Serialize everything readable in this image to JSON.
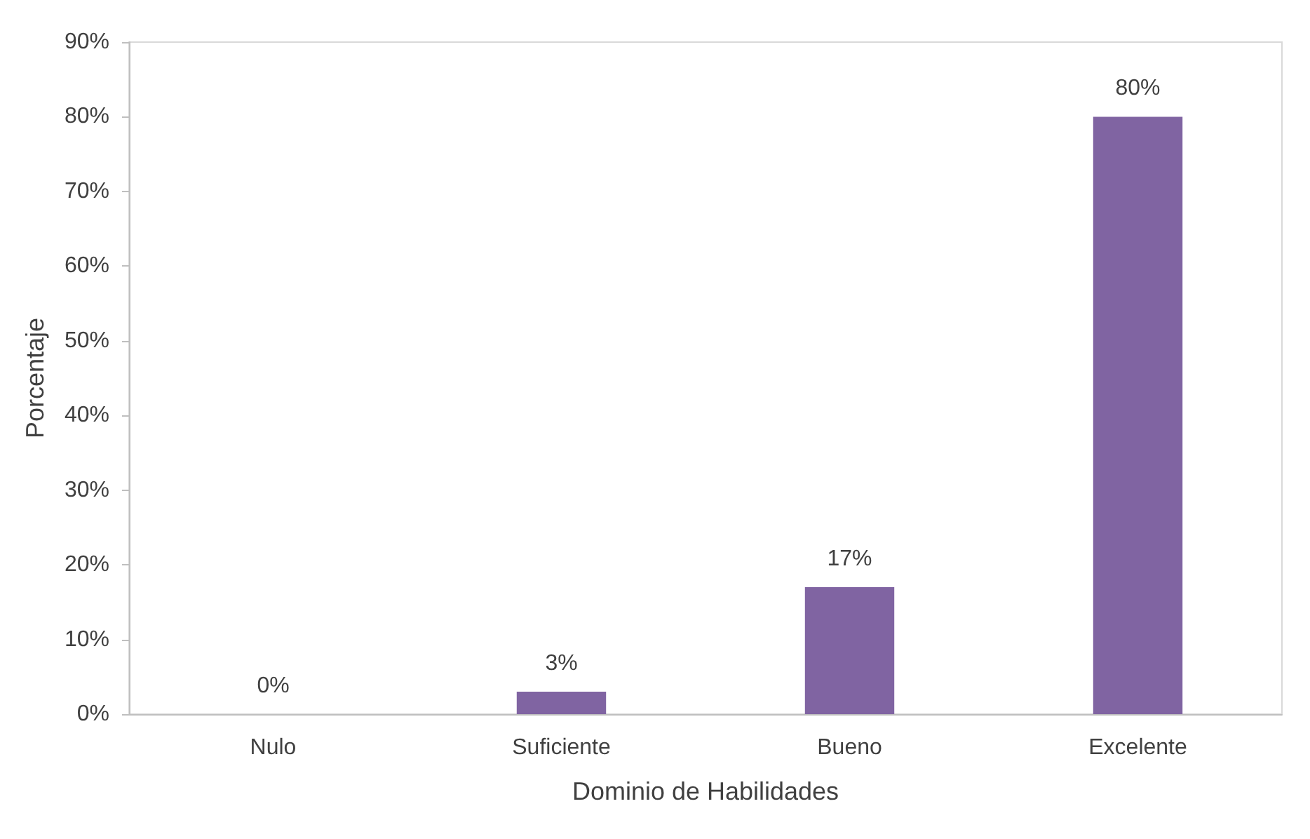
{
  "chart_data": {
    "type": "bar",
    "xlabel": "Dominio de Habilidades",
    "ylabel": "Porcentaje",
    "categories": [
      "Nulo",
      "Suficiente",
      "Bueno",
      "Excelente"
    ],
    "values": [
      0,
      3,
      17,
      80
    ],
    "color": "#8064a2",
    "value_labels": [
      "0%",
      "3%",
      "17%",
      "80%"
    ],
    "ylim": [
      0,
      90
    ],
    "yticks": [
      {
        "value": 0,
        "label": "0%"
      },
      {
        "value": 10,
        "label": "10%"
      },
      {
        "value": 20,
        "label": "20%"
      },
      {
        "value": 30,
        "label": "30%"
      },
      {
        "value": 40,
        "label": "40%"
      },
      {
        "value": 50,
        "label": "50%"
      },
      {
        "value": 60,
        "label": "60%"
      },
      {
        "value": 70,
        "label": "70%"
      },
      {
        "value": 80,
        "label": "80%"
      },
      {
        "value": 90,
        "label": "90%"
      }
    ],
    "grid": false
  }
}
